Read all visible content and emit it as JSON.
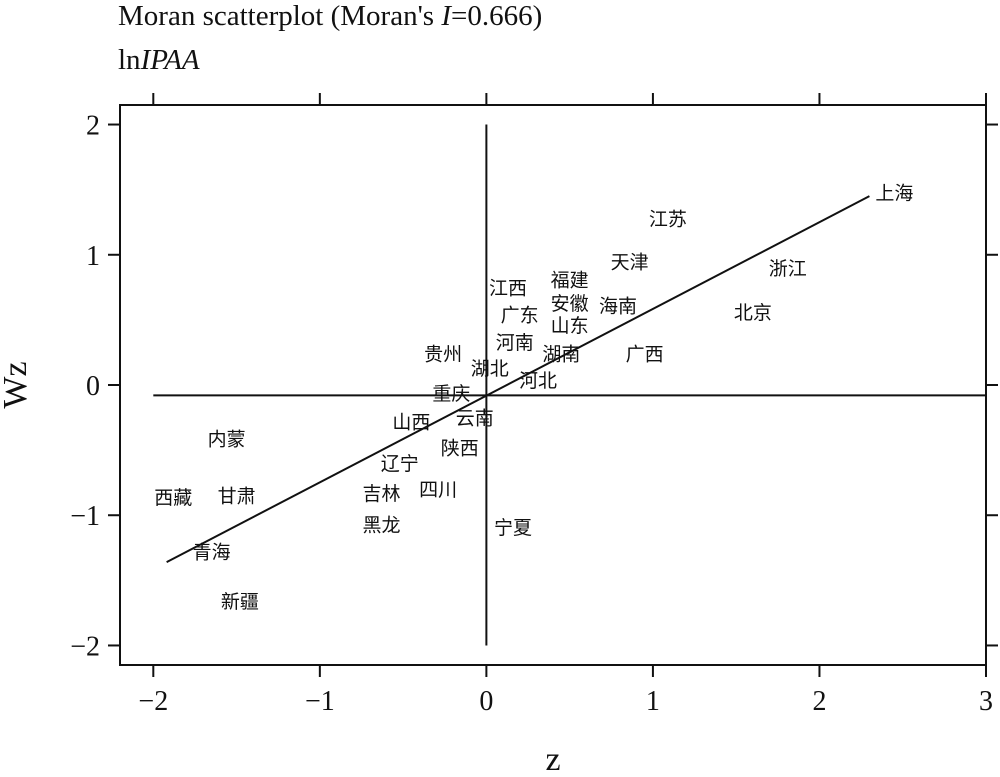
{
  "chart_data": {
    "type": "scatter",
    "title": {
      "prefix": "Moran scatterplot (Moran's ",
      "stat_symbol": "I",
      "suffix": "=0.666)",
      "full": "Moran scatterplot (Moran's I=0.666)"
    },
    "subtitle": {
      "prefix": "ln",
      "italic": "IPAA",
      "full": "lnIPAA"
    },
    "xlabel": "z",
    "ylabel": "Wz",
    "xlim": [
      -2.2,
      3.0
    ],
    "ylim": [
      -2.15,
      2.15
    ],
    "xticks": [
      -2,
      -1,
      0,
      1,
      2,
      3
    ],
    "yticks": [
      -2,
      -1,
      0,
      1,
      2
    ],
    "xtick_labels": [
      "−2",
      "−1",
      "0",
      "1",
      "2",
      "3"
    ],
    "ytick_labels": [
      "−2",
      "−1",
      "0",
      "1",
      "2"
    ],
    "reference_lines": {
      "vertical_x": 0,
      "vertical_y_range": [
        -2,
        2
      ],
      "horizontal_y": -0.08,
      "horizontal_x_range": [
        -2,
        3
      ]
    },
    "fit_line": {
      "from": [
        -1.92,
        -1.36
      ],
      "to": [
        2.3,
        1.45
      ]
    },
    "points": [
      {
        "label": "上海",
        "x": 2.45,
        "y": 1.48
      },
      {
        "label": "江苏",
        "x": 1.09,
        "y": 1.28
      },
      {
        "label": "天津",
        "x": 0.86,
        "y": 0.95
      },
      {
        "label": "浙江",
        "x": 1.81,
        "y": 0.9
      },
      {
        "label": "福建",
        "x": 0.5,
        "y": 0.81
      },
      {
        "label": "江西",
        "x": 0.13,
        "y": 0.75
      },
      {
        "label": "安徽",
        "x": 0.5,
        "y": 0.63
      },
      {
        "label": "海南",
        "x": 0.79,
        "y": 0.61
      },
      {
        "label": "北京",
        "x": 1.6,
        "y": 0.56
      },
      {
        "label": "广东",
        "x": 0.2,
        "y": 0.54
      },
      {
        "label": "山东",
        "x": 0.5,
        "y": 0.46
      },
      {
        "label": "河南",
        "x": 0.17,
        "y": 0.33
      },
      {
        "label": "贵州",
        "x": -0.26,
        "y": 0.24
      },
      {
        "label": "湖南",
        "x": 0.45,
        "y": 0.24
      },
      {
        "label": "广西",
        "x": 0.95,
        "y": 0.24
      },
      {
        "label": "湖北",
        "x": 0.02,
        "y": 0.13
      },
      {
        "label": "河北",
        "x": 0.31,
        "y": 0.04
      },
      {
        "label": "重庆",
        "x": -0.21,
        "y": -0.06
      },
      {
        "label": "山西",
        "x": -0.45,
        "y": -0.28
      },
      {
        "label": "云南",
        "x": -0.07,
        "y": -0.25
      },
      {
        "label": "内蒙",
        "x": -1.56,
        "y": -0.41
      },
      {
        "label": "陕西",
        "x": -0.16,
        "y": -0.48
      },
      {
        "label": "辽宁",
        "x": -0.52,
        "y": -0.6
      },
      {
        "label": "四川",
        "x": -0.29,
        "y": -0.8
      },
      {
        "label": "吉林",
        "x": -0.63,
        "y": -0.83
      },
      {
        "label": "西藏",
        "x": -1.88,
        "y": -0.86
      },
      {
        "label": "甘肃",
        "x": -1.5,
        "y": -0.85
      },
      {
        "label": "黑龙",
        "x": -0.63,
        "y": -1.07
      },
      {
        "label": "宁夏",
        "x": 0.16,
        "y": -1.09
      },
      {
        "label": "青海",
        "x": -1.65,
        "y": -1.28
      },
      {
        "label": "新疆",
        "x": -1.48,
        "y": -1.66
      }
    ]
  }
}
